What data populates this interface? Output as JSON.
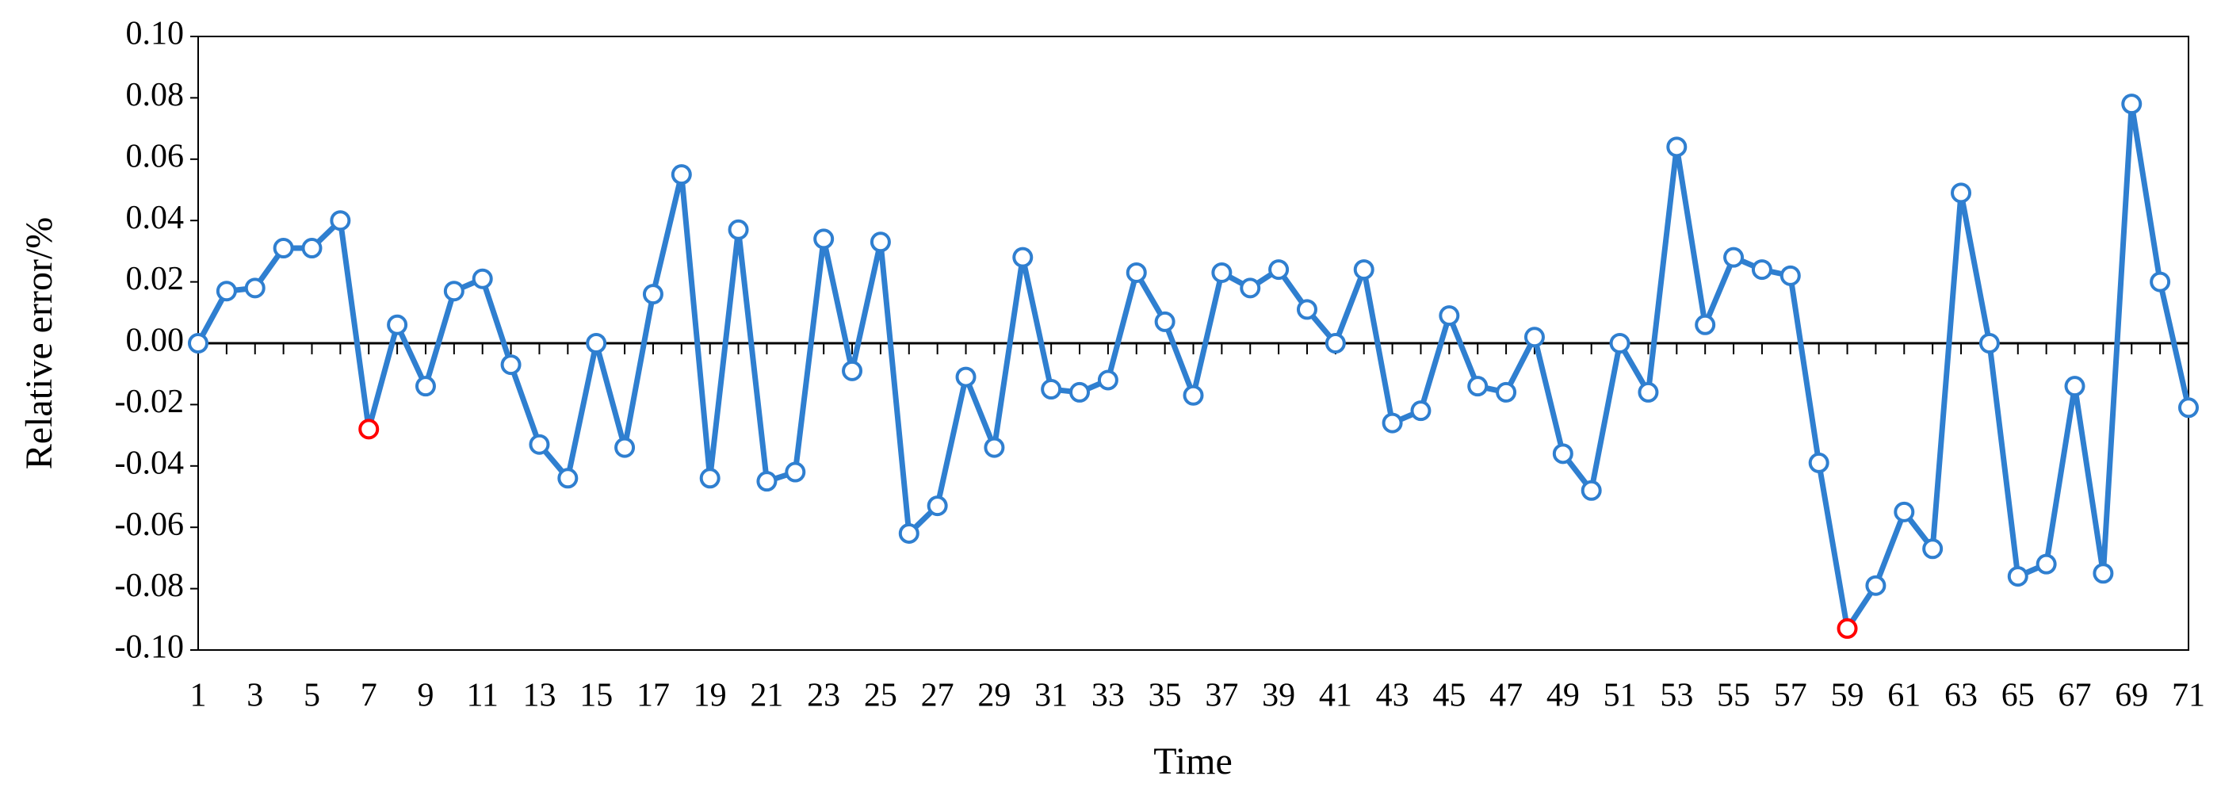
{
  "chart_data": {
    "type": "line",
    "y_label": "Relative error/%",
    "x_label": "Time",
    "categories": [
      "1",
      null,
      "3",
      null,
      "5",
      null,
      "7",
      null,
      "9",
      null,
      "11",
      null,
      "13",
      null,
      "15",
      null,
      "17",
      null,
      "19",
      null,
      "21",
      null,
      "23",
      null,
      "25",
      null,
      "27",
      null,
      "29",
      null,
      "31",
      null,
      "33",
      null,
      "35",
      null,
      "37",
      null,
      "39",
      null,
      "41",
      null,
      "43",
      null,
      "45",
      null,
      "47",
      null,
      "49",
      null,
      "51",
      null,
      "53",
      null,
      "55",
      null,
      "57",
      null,
      "59",
      null,
      "61",
      null,
      "63",
      null,
      "65",
      null,
      "67",
      null,
      "69",
      null,
      "71"
    ],
    "series": [
      {
        "color": "#2f7fd0",
        "marker_fill": "#ffffff",
        "values": [
          0,
          0.017,
          0.018,
          0.031,
          0.031,
          0.04,
          -0.028,
          0.006,
          -0.014,
          0.017,
          0.021,
          -0.007,
          -0.033,
          -0.044,
          0,
          -0.034,
          0.016,
          0.055,
          -0.044,
          0.037,
          -0.045,
          -0.042,
          0.034,
          -0.009,
          0.033,
          -0.062,
          -0.053,
          -0.011,
          -0.034,
          0.028,
          -0.015,
          -0.016,
          -0.012,
          0.023,
          0.007,
          -0.017,
          0.023,
          0.018,
          0.024,
          0.011,
          0,
          0.024,
          -0.026,
          -0.022,
          0.009,
          -0.014,
          -0.016,
          0.002,
          -0.036,
          -0.048,
          0,
          -0.016,
          0.064,
          0.006,
          0.028,
          0.024,
          0.022,
          -0.039,
          -0.093,
          -0.079,
          -0.055,
          -0.067,
          0.049,
          0,
          -0.076,
          -0.072,
          -0.014,
          -0.075,
          0.078,
          0.02,
          -0.021
        ]
      }
    ],
    "highlight_points": [
      "7",
      "59"
    ],
    "highlight_color": "#ff0000",
    "ylim": [
      -0.1,
      0.1
    ],
    "yticks": [
      {
        "value": -0.1,
        "label": "-0.10"
      },
      {
        "value": -0.08,
        "label": "-0.08"
      },
      {
        "value": -0.06,
        "label": "-0.06"
      },
      {
        "value": -0.04,
        "label": "-0.04"
      },
      {
        "value": -0.02,
        "label": "-0.02"
      },
      {
        "value": 0,
        "label": "0.00"
      },
      {
        "value": 0.02,
        "label": "0.02"
      },
      {
        "value": 0.04,
        "label": "0.04"
      },
      {
        "value": 0.06,
        "label": "0.06"
      },
      {
        "value": 0.08,
        "label": "0.08"
      },
      {
        "value": 0.1,
        "label": "0.10"
      }
    ],
    "grid": false
  }
}
